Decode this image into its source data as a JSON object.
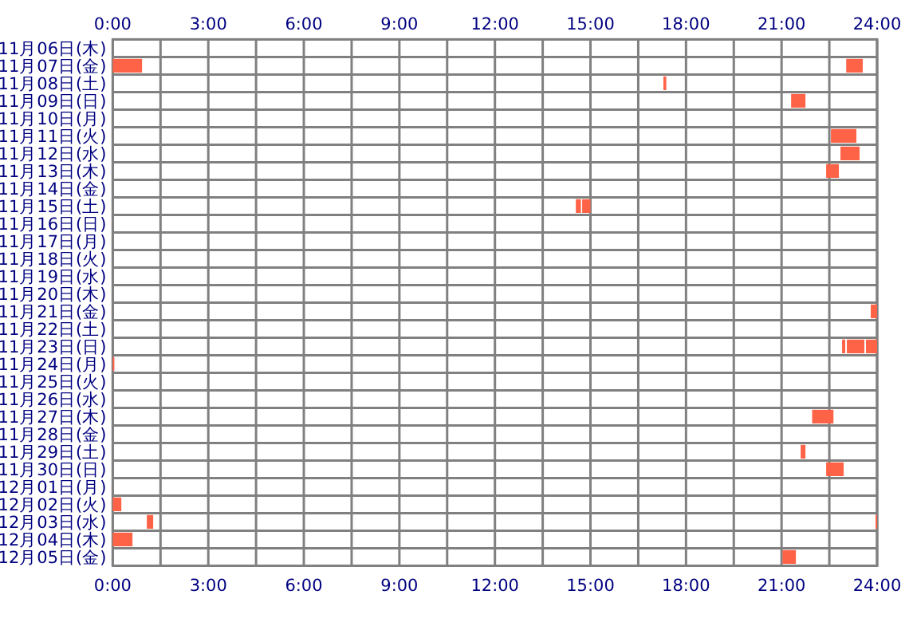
{
  "chart_data": {
    "type": "bar",
    "orientation": "horizontal",
    "grid": true,
    "categories": [
      "11月06日(木)",
      "11月07日(金)",
      "11月08日(土)",
      "11月09日(日)",
      "11月10日(月)",
      "11月11日(火)",
      "11月12日(水)",
      "11月13日(木)",
      "11月14日(金)",
      "11月15日(土)",
      "11月16日(日)",
      "11月17日(月)",
      "11月18日(火)",
      "11月19日(水)",
      "11月20日(木)",
      "11月21日(金)",
      "11月22日(土)",
      "11月23日(日)",
      "11月24日(月)",
      "11月25日(火)",
      "11月26日(水)",
      "11月27日(木)",
      "11月28日(金)",
      "11月29日(土)",
      "11月30日(日)",
      "12月01日(月)",
      "12月02日(火)",
      "12月03日(水)",
      "12月04日(木)",
      "12月05日(金)"
    ],
    "series": [
      {
        "color": "#ff6347",
        "base": [
          null,
          0,
          17.29,
          21.3,
          null,
          22.55,
          22.85,
          22.4,
          null,
          14.54,
          null,
          null,
          null,
          null,
          null,
          23.8,
          null,
          22.9,
          0,
          null,
          null,
          21.96,
          null,
          21.6,
          22.4,
          null,
          0,
          1.07,
          0,
          21.03
        ],
        "values": [
          null,
          0.92,
          0.09,
          0.45,
          null,
          0.8,
          0.6,
          0.4,
          null,
          0.16,
          null,
          null,
          null,
          null,
          null,
          0.2,
          null,
          0.1,
          0.05,
          null,
          null,
          0.67,
          null,
          0.15,
          0.55,
          null,
          0.27,
          0.2,
          0.62,
          0.42
        ]
      },
      {
        "color": "#ff6347",
        "base": [
          null,
          23.03,
          null,
          null,
          null,
          null,
          null,
          null,
          null,
          14.74,
          null,
          null,
          null,
          null,
          null,
          null,
          null,
          23.05,
          null,
          null,
          null,
          null,
          null,
          null,
          null,
          null,
          null,
          23.95,
          null,
          null
        ],
        "values": [
          null,
          0.52,
          null,
          null,
          null,
          null,
          null,
          null,
          null,
          0.26,
          null,
          null,
          null,
          null,
          null,
          null,
          null,
          0.55,
          null,
          null,
          null,
          null,
          null,
          null,
          null,
          null,
          null,
          0.05,
          null,
          null
        ]
      },
      {
        "color": "#ff6347",
        "base": [
          null,
          null,
          null,
          null,
          null,
          null,
          null,
          null,
          null,
          null,
          null,
          null,
          null,
          null,
          null,
          null,
          null,
          23.65,
          null,
          null,
          null,
          null,
          null,
          null,
          null,
          null,
          null,
          null,
          null,
          null
        ],
        "values": [
          null,
          null,
          null,
          null,
          null,
          null,
          null,
          null,
          null,
          null,
          null,
          null,
          null,
          null,
          null,
          null,
          null,
          0.35,
          null,
          null,
          null,
          null,
          null,
          null,
          null,
          null,
          null,
          null,
          null,
          null
        ]
      }
    ],
    "xlim": [
      0,
      24
    ],
    "xticks": [
      {
        "value": 0,
        "label": "0:00"
      },
      {
        "value": 1.5,
        "label": null
      },
      {
        "value": 3,
        "label": "3:00"
      },
      {
        "value": 4.5,
        "label": null
      },
      {
        "value": 6,
        "label": "6:00"
      },
      {
        "value": 7.5,
        "label": null
      },
      {
        "value": 9,
        "label": "9:00"
      },
      {
        "value": 10.5,
        "label": null
      },
      {
        "value": 12,
        "label": "12:00"
      },
      {
        "value": 13.5,
        "label": null
      },
      {
        "value": 15,
        "label": "15:00"
      },
      {
        "value": 16.5,
        "label": null
      },
      {
        "value": 18,
        "label": "18:00"
      },
      {
        "value": 19.5,
        "label": null
      },
      {
        "value": 21,
        "label": "21:00"
      },
      {
        "value": 22.5,
        "label": null
      },
      {
        "value": 24,
        "label": "24:00"
      }
    ],
    "x2lim": [
      0,
      24
    ],
    "x2ticks": [
      {
        "value": 0,
        "label": "0:00"
      },
      {
        "value": 1.5,
        "label": null
      },
      {
        "value": 3,
        "label": "3:00"
      },
      {
        "value": 4.5,
        "label": null
      },
      {
        "value": 6,
        "label": "6:00"
      },
      {
        "value": 7.5,
        "label": null
      },
      {
        "value": 9,
        "label": "9:00"
      },
      {
        "value": 10.5,
        "label": null
      },
      {
        "value": 12,
        "label": "12:00"
      },
      {
        "value": 13.5,
        "label": null
      },
      {
        "value": 15,
        "label": "15:00"
      },
      {
        "value": 16.5,
        "label": null
      },
      {
        "value": 18,
        "label": "18:00"
      },
      {
        "value": 19.5,
        "label": null
      },
      {
        "value": 21,
        "label": "21:00"
      },
      {
        "value": 22.5,
        "label": null
      },
      {
        "value": 24,
        "label": "24:00"
      }
    ]
  }
}
